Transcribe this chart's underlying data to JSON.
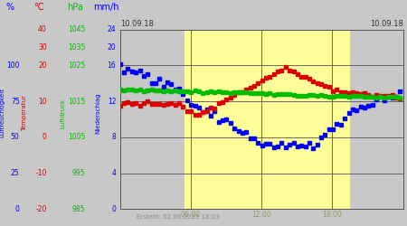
{
  "title_left": "10.09.18",
  "title_right": "10.09.18",
  "footer": "Erstellt: 02.06.2025 18:03",
  "yellow_band": [
    5.5,
    19.5
  ],
  "yellow_color": "#ffff99",
  "plot_bg": "#cccccc",
  "grid_color": "#555555",
  "xlim": [
    0,
    24
  ],
  "ylim": [
    0,
    100
  ],
  "x_ticks": [
    6,
    12,
    18
  ],
  "x_tick_labels": [
    "06:00",
    "12:00",
    "18:00"
  ],
  "y_grid_vals": [
    0,
    20,
    40,
    60,
    80,
    100
  ],
  "pct_labels": [
    "0",
    "25",
    "50",
    "75",
    "100"
  ],
  "temp_labels": [
    "-20",
    "-10",
    "0",
    "10",
    "20",
    "30",
    "40"
  ],
  "hpa_labels": [
    "985",
    "995",
    "1005",
    "1015",
    "1025",
    "1035",
    "1045"
  ],
  "mmh_labels": [
    "0",
    "4",
    "8",
    "12",
    "16",
    "20",
    "24"
  ],
  "col_blue": "#0000ff",
  "col_red": "#dd0000",
  "col_green": "#00bb00",
  "col_dark": "#333333",
  "col_tan": "#999966",
  "col_gray": "#888888"
}
